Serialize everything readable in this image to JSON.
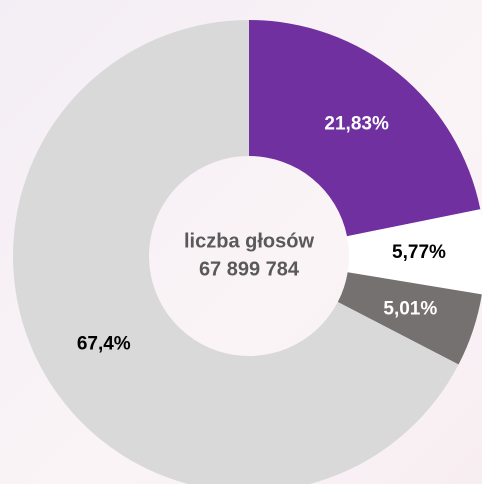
{
  "chart_data": {
    "type": "donut",
    "center_text": [
      "liczba głosów",
      "67 899 784"
    ],
    "values": [
      21.83,
      5.77,
      5.01,
      67.4
    ],
    "value_labels": [
      "21,83%",
      "5,77%",
      "5,01%",
      "67,4%"
    ],
    "colors": [
      "#7030a0",
      "#ffffff",
      "#767171",
      "#d9d9d9"
    ],
    "label_colors": [
      "#ffffff",
      "#000000",
      "#ffffff",
      "#000000"
    ]
  }
}
